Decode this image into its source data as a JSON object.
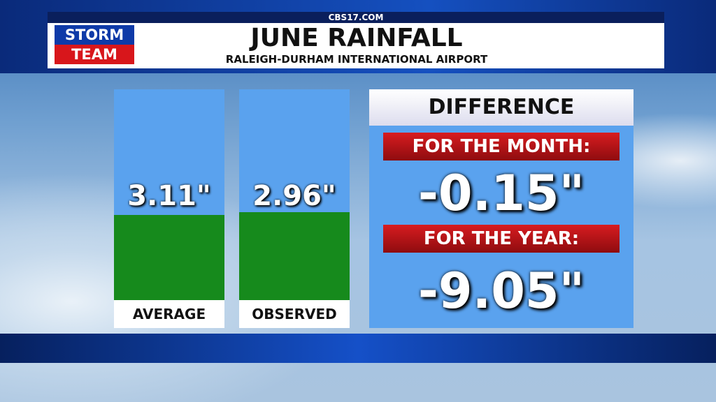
{
  "header": {
    "site": "CBS17.COM",
    "logo_top": "STORM",
    "logo_bottom": "TEAM",
    "title": "JUNE RAINFALL",
    "subtitle": "RALEIGH-DURHAM INTERNATIONAL AIRPORT"
  },
  "panels": [
    {
      "value": "3.11\"",
      "label": "AVERAGE"
    },
    {
      "value": "2.96\"",
      "label": "OBSERVED"
    }
  ],
  "difference": {
    "title": "DIFFERENCE",
    "month_label": "FOR THE MONTH:",
    "month_value": "-0.15\"",
    "year_label": "FOR THE YEAR:",
    "year_value": "-9.05\""
  }
}
